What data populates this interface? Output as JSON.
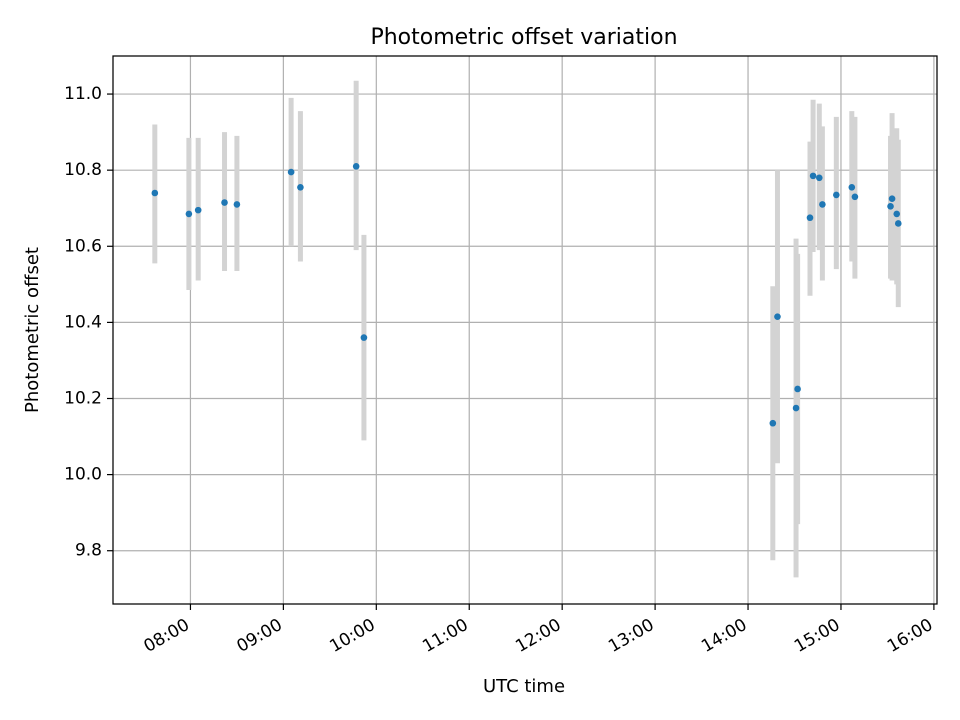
{
  "chart_data": {
    "type": "scatter",
    "title": "Photometric offset variation",
    "xlabel": "UTC time",
    "ylabel": "Photometric offset",
    "x_axis_kind": "time",
    "xlim": [
      "07:10",
      "16:02"
    ],
    "ylim": [
      9.66,
      11.1
    ],
    "x_ticks": [
      "08:00",
      "09:00",
      "10:00",
      "11:00",
      "12:00",
      "13:00",
      "14:00",
      "15:00",
      "16:00"
    ],
    "y_ticks": [
      "9.8",
      "10.0",
      "10.2",
      "10.4",
      "10.6",
      "10.8",
      "11.0"
    ],
    "grid": true,
    "colors": {
      "point": "#1f77b4",
      "errorbar": "#d3d3d3",
      "grid": "#b0b0b0"
    },
    "points": [
      {
        "x": "07:37",
        "y": 10.74,
        "yerr_low": 10.555,
        "yerr_high": 10.92
      },
      {
        "x": "07:59",
        "y": 10.685,
        "yerr_low": 10.485,
        "yerr_high": 10.885
      },
      {
        "x": "08:05",
        "y": 10.695,
        "yerr_low": 10.51,
        "yerr_high": 10.885
      },
      {
        "x": "08:22",
        "y": 10.715,
        "yerr_low": 10.535,
        "yerr_high": 10.9
      },
      {
        "x": "08:30",
        "y": 10.71,
        "yerr_low": 10.535,
        "yerr_high": 10.89
      },
      {
        "x": "09:05",
        "y": 10.795,
        "yerr_low": 10.6,
        "yerr_high": 10.99
      },
      {
        "x": "09:11",
        "y": 10.755,
        "yerr_low": 10.56,
        "yerr_high": 10.955
      },
      {
        "x": "09:47",
        "y": 10.81,
        "yerr_low": 10.59,
        "yerr_high": 11.035
      },
      {
        "x": "09:52",
        "y": 10.36,
        "yerr_low": 10.09,
        "yerr_high": 10.63
      },
      {
        "x": "14:16",
        "y": 10.135,
        "yerr_low": 9.775,
        "yerr_high": 10.495
      },
      {
        "x": "14:19",
        "y": 10.415,
        "yerr_low": 10.03,
        "yerr_high": 10.8
      },
      {
        "x": "14:31",
        "y": 10.175,
        "yerr_low": 9.73,
        "yerr_high": 10.62
      },
      {
        "x": "14:32",
        "y": 10.225,
        "yerr_low": 9.87,
        "yerr_high": 10.58
      },
      {
        "x": "14:40",
        "y": 10.675,
        "yerr_low": 10.47,
        "yerr_high": 10.875
      },
      {
        "x": "14:42",
        "y": 10.785,
        "yerr_low": 10.585,
        "yerr_high": 10.985
      },
      {
        "x": "14:46",
        "y": 10.78,
        "yerr_low": 10.59,
        "yerr_high": 10.975
      },
      {
        "x": "14:48",
        "y": 10.71,
        "yerr_low": 10.51,
        "yerr_high": 10.915
      },
      {
        "x": "14:57",
        "y": 10.735,
        "yerr_low": 10.54,
        "yerr_high": 10.94
      },
      {
        "x": "15:07",
        "y": 10.755,
        "yerr_low": 10.56,
        "yerr_high": 10.955
      },
      {
        "x": "15:09",
        "y": 10.73,
        "yerr_low": 10.515,
        "yerr_high": 10.94
      },
      {
        "x": "15:32",
        "y": 10.705,
        "yerr_low": 10.515,
        "yerr_high": 10.89
      },
      {
        "x": "15:33",
        "y": 10.725,
        "yerr_low": 10.51,
        "yerr_high": 10.95
      },
      {
        "x": "15:36",
        "y": 10.685,
        "yerr_low": 10.5,
        "yerr_high": 10.91
      },
      {
        "x": "15:37",
        "y": 10.66,
        "yerr_low": 10.44,
        "yerr_high": 10.88
      }
    ]
  }
}
